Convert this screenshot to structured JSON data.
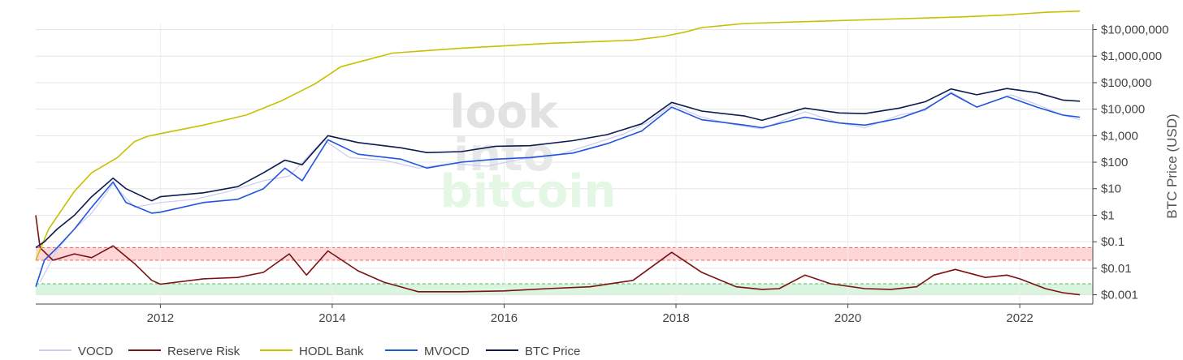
{
  "chart_data": {
    "type": "line",
    "title": "",
    "xlabel": "",
    "ylabel": "BTC Price (USD)",
    "y_scale": "log",
    "xlim": [
      2010.55,
      2022.85
    ],
    "ylim_log10": [
      -3.35,
      7.2
    ],
    "grid": true,
    "legend_position": "bottom-left",
    "x_ticks": [
      {
        "value": 2012,
        "label": "2012"
      },
      {
        "value": 2014,
        "label": "2014"
      },
      {
        "value": 2016,
        "label": "2016"
      },
      {
        "value": 2018,
        "label": "2018"
      },
      {
        "value": 2020,
        "label": "2020"
      },
      {
        "value": 2022,
        "label": "2022"
      }
    ],
    "y_ticks": [
      {
        "value": 10000000,
        "label": "$10,000,000"
      },
      {
        "value": 1000000,
        "label": "$1,000,000"
      },
      {
        "value": 100000,
        "label": "$100,000"
      },
      {
        "value": 10000,
        "label": "$10,000"
      },
      {
        "value": 1000,
        "label": "$1,000"
      },
      {
        "value": 100,
        "label": "$100"
      },
      {
        "value": 10,
        "label": "$10"
      },
      {
        "value": 1,
        "label": "$1"
      },
      {
        "value": 0.1,
        "label": "$0.1"
      },
      {
        "value": 0.01,
        "label": "$0.01"
      },
      {
        "value": 0.001,
        "label": "$0.001"
      }
    ],
    "bands": [
      {
        "name": "high-risk-band",
        "from": 0.02,
        "to": 0.06,
        "color": "#ffd6d6",
        "line_color": "#e06666"
      },
      {
        "name": "low-risk-band",
        "from": 0.001,
        "to": 0.0026,
        "color": "#d9f5e0",
        "line_color": "#5cb85c"
      }
    ],
    "series": [
      {
        "name": "VOCD",
        "color": "#c9ccf5",
        "x": [
          2010.6,
          2010.8,
          2011.0,
          2011.2,
          2011.45,
          2011.7,
          2012.0,
          2012.4,
          2012.8,
          2013.2,
          2013.5,
          2013.9,
          2014.2,
          2014.6,
          2015.0,
          2015.4,
          2015.8,
          2016.2,
          2016.6,
          2017.0,
          2017.4,
          2017.7,
          2017.95,
          2018.3,
          2018.7,
          2019.0,
          2019.5,
          2019.9,
          2020.2,
          2020.6,
          2020.9,
          2021.2,
          2021.5,
          2021.9,
          2022.2,
          2022.5,
          2022.7
        ],
        "y": [
          0.003,
          0.05,
          0.3,
          1.2,
          15,
          2,
          3,
          4,
          8,
          20,
          30,
          700,
          150,
          120,
          60,
          90,
          70,
          130,
          180,
          450,
          1200,
          3500,
          15000,
          5000,
          2500,
          1800,
          8000,
          3000,
          2000,
          6000,
          9000,
          45000,
          12000,
          35000,
          15000,
          6000,
          4000
        ]
      },
      {
        "name": "Reserve Risk",
        "color": "#7b1111",
        "x": [
          2010.55,
          2010.6,
          2010.75,
          2011.0,
          2011.2,
          2011.45,
          2011.7,
          2011.9,
          2012.0,
          2012.5,
          2012.9,
          2013.2,
          2013.5,
          2013.7,
          2013.95,
          2014.3,
          2014.6,
          2015.0,
          2015.5,
          2016.0,
          2016.5,
          2017.0,
          2017.5,
          2017.95,
          2018.3,
          2018.7,
          2019.0,
          2019.2,
          2019.5,
          2019.8,
          2020.2,
          2020.5,
          2020.8,
          2021.0,
          2021.25,
          2021.6,
          2021.85,
          2022.0,
          2022.3,
          2022.5,
          2022.7
        ],
        "y": [
          1.0,
          0.06,
          0.02,
          0.035,
          0.025,
          0.07,
          0.015,
          0.0035,
          0.0025,
          0.004,
          0.0045,
          0.007,
          0.035,
          0.0055,
          0.045,
          0.008,
          0.003,
          0.0013,
          0.0013,
          0.0014,
          0.0017,
          0.002,
          0.0035,
          0.04,
          0.007,
          0.002,
          0.0016,
          0.0017,
          0.0055,
          0.0026,
          0.0017,
          0.0016,
          0.002,
          0.0055,
          0.009,
          0.0045,
          0.0055,
          0.004,
          0.0017,
          0.0012,
          0.001
        ]
      },
      {
        "name": "HODL Bank",
        "color": "#c8c000",
        "x": [
          2010.55,
          2010.7,
          2011.0,
          2011.2,
          2011.5,
          2011.7,
          2011.85,
          2012.0,
          2012.5,
          2013.0,
          2013.4,
          2013.8,
          2014.1,
          2014.7,
          2015.5,
          2016.5,
          2017.5,
          2017.85,
          2018.1,
          2018.3,
          2018.8,
          2019.5,
          2020.5,
          2021.3,
          2021.8,
          2022.3,
          2022.7
        ],
        "y": [
          0.02,
          0.3,
          8,
          40,
          150,
          600,
          950,
          1200,
          2500,
          6000,
          20000,
          90000,
          400000,
          1300000,
          2000000,
          3000000,
          4000000,
          5500000,
          8000000,
          12000000,
          17000000,
          20000000,
          25000000,
          30000000,
          35000000,
          45000000,
          50000000
        ]
      },
      {
        "name": "MVOCD",
        "color": "#2255dd",
        "x": [
          2010.55,
          2010.65,
          2010.8,
          2011.0,
          2011.2,
          2011.45,
          2011.6,
          2011.9,
          2012.0,
          2012.5,
          2012.9,
          2013.2,
          2013.45,
          2013.65,
          2013.95,
          2014.3,
          2014.8,
          2015.1,
          2015.5,
          2015.9,
          2016.3,
          2016.8,
          2017.2,
          2017.6,
          2017.95,
          2018.3,
          2018.8,
          2019.0,
          2019.5,
          2019.9,
          2020.2,
          2020.6,
          2020.9,
          2021.2,
          2021.5,
          2021.85,
          2022.2,
          2022.5,
          2022.7
        ],
        "y": [
          0.002,
          0.02,
          0.06,
          0.3,
          2,
          18,
          3,
          1.2,
          1.3,
          3,
          4,
          10,
          60,
          20,
          700,
          200,
          130,
          60,
          100,
          130,
          150,
          220,
          500,
          1500,
          12000,
          4000,
          2500,
          2000,
          5000,
          3000,
          2500,
          4500,
          10000,
          40000,
          12000,
          30000,
          12000,
          6000,
          5000
        ]
      },
      {
        "name": "BTC Price",
        "color": "#0d1b4f",
        "x": [
          2010.55,
          2010.65,
          2010.8,
          2011.0,
          2011.2,
          2011.45,
          2011.6,
          2011.9,
          2012.0,
          2012.5,
          2012.9,
          2013.2,
          2013.45,
          2013.65,
          2013.95,
          2014.3,
          2014.8,
          2015.1,
          2015.5,
          2015.9,
          2016.3,
          2016.8,
          2017.2,
          2017.6,
          2017.95,
          2018.3,
          2018.8,
          2019.0,
          2019.5,
          2019.9,
          2020.2,
          2020.6,
          2020.9,
          2021.2,
          2021.5,
          2021.85,
          2022.2,
          2022.5,
          2022.7
        ],
        "y": [
          0.06,
          0.1,
          0.3,
          1,
          5,
          25,
          10,
          3.5,
          5,
          7,
          12,
          40,
          120,
          80,
          1000,
          550,
          350,
          230,
          250,
          400,
          420,
          650,
          1100,
          2800,
          18000,
          8500,
          5500,
          3800,
          11000,
          7200,
          6800,
          11000,
          19000,
          58000,
          35000,
          60000,
          42000,
          22000,
          20000
        ]
      }
    ]
  },
  "watermark": {
    "line1": "look",
    "line2": "into",
    "line3": "bitcoin"
  }
}
